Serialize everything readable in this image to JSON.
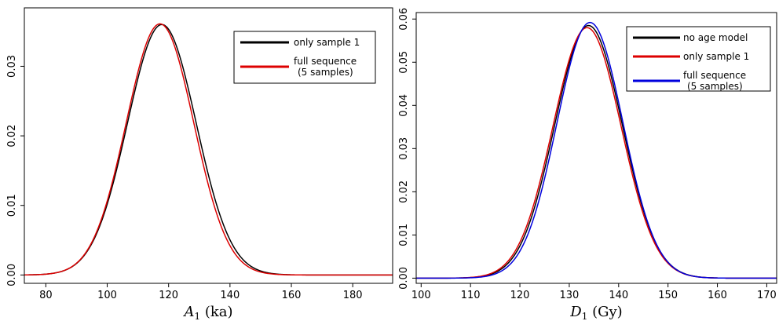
{
  "chart_data": [
    {
      "type": "line",
      "title": "",
      "xlabel": "A",
      "xlabel_sub": "1",
      "xlabel_unit": " (ka)",
      "ylabel": "",
      "xlim": [
        73,
        193
      ],
      "ylim": [
        -0.0012,
        0.0384
      ],
      "xticks": [
        80,
        100,
        120,
        140,
        160,
        180
      ],
      "yticks": [
        0.0,
        0.01,
        0.02,
        0.03
      ],
      "ytick_labels": [
        "0.00",
        "0.01",
        "0.02",
        "0.03"
      ],
      "grid": false,
      "legend_position": "top-right",
      "series": [
        {
          "name": "only sample 1",
          "color": "#000000",
          "shape": {
            "mu": 117.8,
            "sigma": 11.2,
            "amp": 0.036
          }
        },
        {
          "name": "full sequence\n(5 samples)",
          "color": "#dd0000",
          "shape": {
            "mu": 117.2,
            "sigma": 11.0,
            "amp": 0.0361
          }
        }
      ]
    },
    {
      "type": "line",
      "title": "",
      "xlabel": "D",
      "xlabel_sub": "1",
      "xlabel_unit": " (Gy)",
      "ylabel": "",
      "xlim": [
        99,
        172
      ],
      "ylim": [
        -0.0012,
        0.0615
      ],
      "xticks": [
        100,
        110,
        120,
        130,
        140,
        150,
        160,
        170
      ],
      "yticks": [
        0.0,
        0.01,
        0.02,
        0.03,
        0.04,
        0.05,
        0.06
      ],
      "ytick_labels": [
        "0.00",
        "0.01",
        "0.02",
        "0.03",
        "0.04",
        "0.05",
        "0.06"
      ],
      "grid": false,
      "legend_position": "top-right",
      "series": [
        {
          "name": "no age model",
          "color": "#000000",
          "shape": {
            "mu": 133.9,
            "sigma": 6.85,
            "amp": 0.0585
          }
        },
        {
          "name": "only sample 1",
          "color": "#dd0000",
          "shape": {
            "mu": 133.6,
            "sigma": 6.9,
            "amp": 0.058
          }
        },
        {
          "name": "full sequence\n(5 samples)",
          "color": "#0000dd",
          "shape": {
            "mu": 134.2,
            "sigma": 6.7,
            "amp": 0.0592
          }
        }
      ]
    }
  ]
}
